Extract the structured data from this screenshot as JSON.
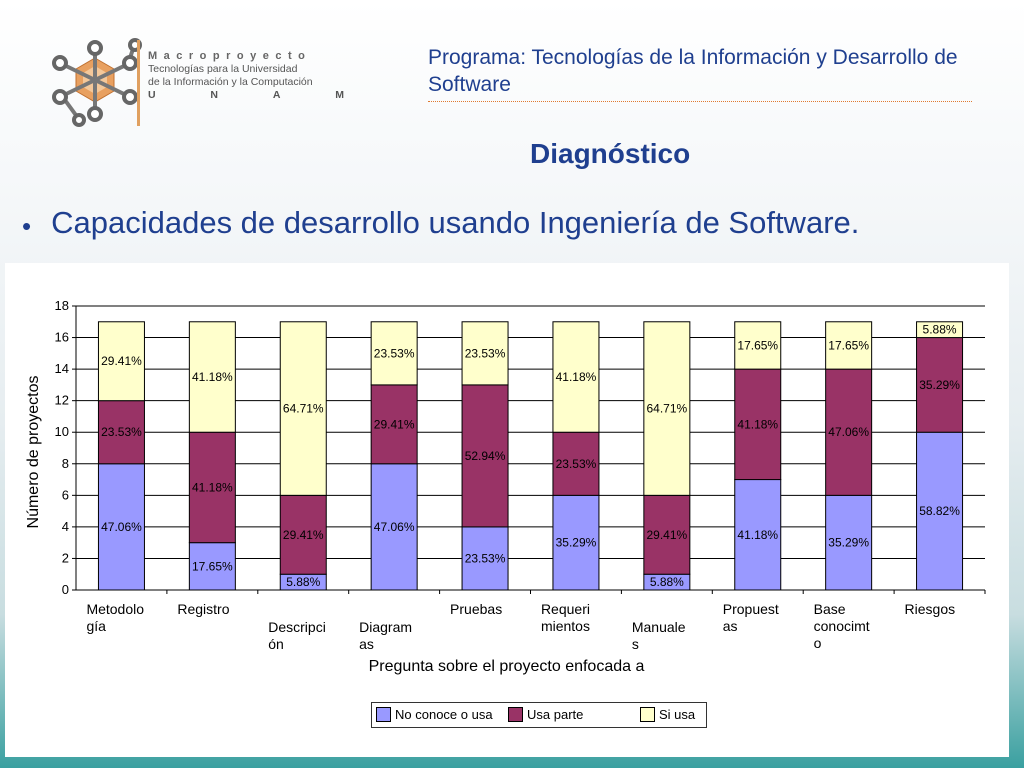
{
  "header": {
    "logo_brand": "Macroproyecto",
    "logo_line1": "Tecnologías para la Universidad",
    "logo_line2": "de la Información y la Computación",
    "logo_line3": [
      "U",
      "N",
      "A",
      "M"
    ],
    "program_title": "Programa: Tecnologías de la Información y Desarrollo de Software",
    "section_title": "Diagnóstico"
  },
  "bullet": {
    "marker": "•",
    "text": "Capacidades de desarrollo usando Ingeniería de Software."
  },
  "colors": {
    "no_conoce": "#9999ff",
    "usa_parte": "#993366",
    "si_usa": "#ffffcc",
    "title_blue": "#1f3f8f"
  },
  "chart_data": {
    "type": "bar",
    "stacked": true,
    "xlabel": "Pregunta sobre el proyecto enfocada a",
    "ylabel": "Número de proyectos",
    "ylim": [
      0,
      18
    ],
    "yticks": [
      0,
      2,
      4,
      6,
      8,
      10,
      12,
      14,
      16,
      18
    ],
    "grid": true,
    "legend_position": "bottom",
    "categories": [
      "Metodología",
      "Registro",
      "Descripción",
      "Diagramas",
      "Pruebas",
      "Requerimientos",
      "Manuales",
      "Propuestas",
      "Base conocimto",
      "Riesgos"
    ],
    "category_tick_labels": [
      {
        "lines": [
          "Metodolo",
          "gía"
        ],
        "row": 0
      },
      {
        "lines": [
          "Registro"
        ],
        "row": 0
      },
      {
        "lines": [
          "Descripci",
          "ón"
        ],
        "row": 1
      },
      {
        "lines": [
          "Diagram",
          "as"
        ],
        "row": 1
      },
      {
        "lines": [
          "Pruebas"
        ],
        "row": 0
      },
      {
        "lines": [
          "Requeri",
          "mientos"
        ],
        "row": 0
      },
      {
        "lines": [
          "Manuale",
          "s"
        ],
        "row": 1
      },
      {
        "lines": [
          "Propuest",
          "as"
        ],
        "row": 0
      },
      {
        "lines": [
          " Base",
          "conocimt",
          "o"
        ],
        "row": 0
      },
      {
        "lines": [
          "Riesgos"
        ],
        "row": 0
      }
    ],
    "series": [
      {
        "name": "No conoce o usa",
        "values": [
          8,
          3,
          1,
          8,
          4,
          6,
          1,
          7,
          6,
          10
        ],
        "labels": [
          "47.06%",
          "17.65%",
          "5.88%",
          "47.06%",
          "23.53%",
          "35.29%",
          "5.88%",
          "41.18%",
          "35.29%",
          "58.82%"
        ]
      },
      {
        "name": "Usa parte",
        "values": [
          4,
          7,
          5,
          5,
          9,
          4,
          5,
          7,
          8,
          6
        ],
        "labels": [
          "23.53%",
          "41.18%",
          "29.41%",
          "29.41%",
          "52.94%",
          "23.53%",
          "29.41%",
          "41.18%",
          "47.06%",
          "35.29%"
        ]
      },
      {
        "name": "Si usa",
        "values": [
          5,
          7,
          11,
          4,
          4,
          7,
          11,
          3,
          3,
          1
        ],
        "labels": [
          "29.41%",
          "41.18%",
          "64.71%",
          "23.53%",
          "23.53%",
          "41.18%",
          "64.71%",
          "17.65%",
          "17.65%",
          "5.88%"
        ]
      }
    ]
  }
}
